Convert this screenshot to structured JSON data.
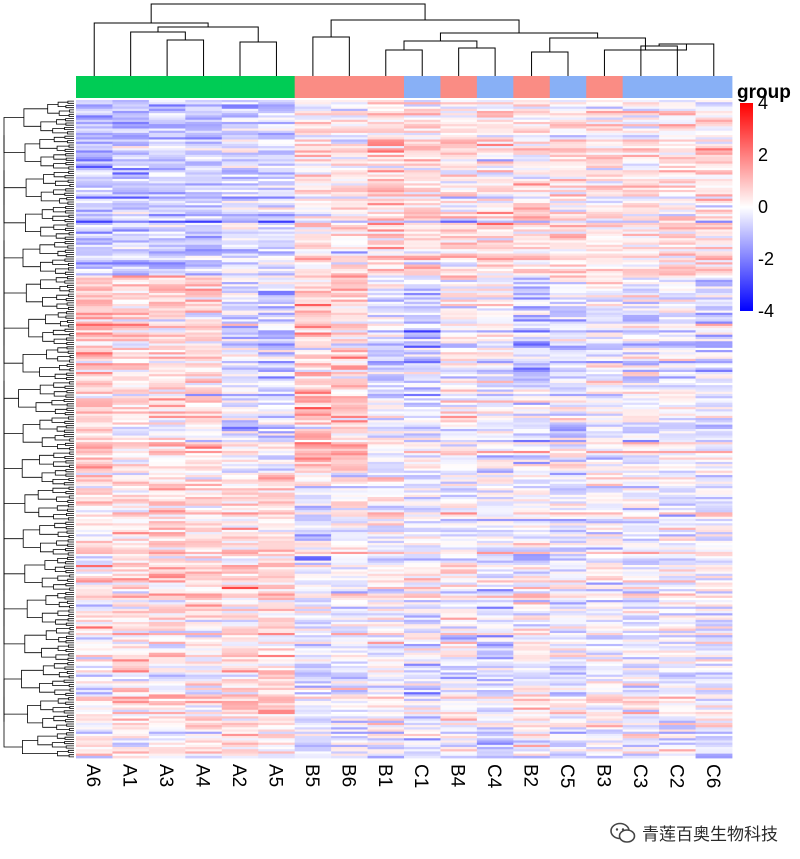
{
  "chart_data": {
    "type": "heatmap",
    "title": "",
    "legend_title": "group",
    "color_scale": {
      "min": -4,
      "max": 4,
      "ticks": [
        4,
        2,
        0,
        -2,
        -4
      ],
      "low_color": "#0000ff",
      "mid_color": "#ffffff",
      "high_color": "#ff0000"
    },
    "columns": [
      "A6",
      "A1",
      "A3",
      "A4",
      "A2",
      "A5",
      "B5",
      "B6",
      "B1",
      "C1",
      "B4",
      "C4",
      "B2",
      "C5",
      "B3",
      "C3",
      "C2",
      "C6"
    ],
    "column_groups": [
      "A",
      "A",
      "A",
      "A",
      "A",
      "A",
      "B",
      "B",
      "B",
      "C",
      "B",
      "C",
      "B",
      "C",
      "B",
      "C",
      "C",
      "C"
    ],
    "group_colors": {
      "A": "#00cc55",
      "B": "#fa8c84",
      "C": "#88b0f6"
    },
    "row_count": 300,
    "row_blocks": [
      {
        "name": "block-1",
        "rows": 80,
        "means": [
          -2.0,
          -1.6,
          -1.5,
          -1.6,
          -1.1,
          -1.2,
          0.5,
          0.3,
          0.9,
          0.8,
          0.5,
          0.6,
          0.7,
          0.6,
          0.6,
          0.6,
          0.6,
          0.8
        ]
      },
      {
        "name": "block-2",
        "rows": 50,
        "means": [
          1.8,
          1.0,
          0.9,
          1.0,
          -1.0,
          -1.3,
          1.6,
          1.3,
          -0.9,
          -1.2,
          0.2,
          -0.2,
          -1.3,
          -0.8,
          -0.3,
          -0.7,
          -0.7,
          -0.9
        ]
      },
      {
        "name": "block-3",
        "rows": 40,
        "means": [
          1.4,
          0.8,
          0.7,
          0.9,
          -0.6,
          -0.8,
          2.0,
          1.5,
          -0.6,
          -0.5,
          0.1,
          -0.2,
          -0.5,
          -0.4,
          -0.3,
          -0.5,
          -0.4,
          -0.5
        ]
      },
      {
        "name": "block-4",
        "rows": 70,
        "means": [
          0.5,
          0.8,
          0.9,
          1.0,
          0.8,
          0.9,
          -0.7,
          -0.5,
          -0.2,
          -0.5,
          -0.2,
          -0.6,
          -0.2,
          -0.5,
          -0.3,
          -0.4,
          -0.4,
          -0.5
        ]
      },
      {
        "name": "block-5",
        "rows": 60,
        "means": [
          0.4,
          0.6,
          0.4,
          0.5,
          1.0,
          1.1,
          -0.7,
          -0.4,
          0.1,
          -0.5,
          -0.4,
          -1.0,
          0.3,
          -0.4,
          0.0,
          -0.3,
          -0.3,
          -0.5
        ]
      }
    ]
  },
  "watermark": {
    "text": "青莲百奥生物科技",
    "icon": "wechat-icon"
  }
}
